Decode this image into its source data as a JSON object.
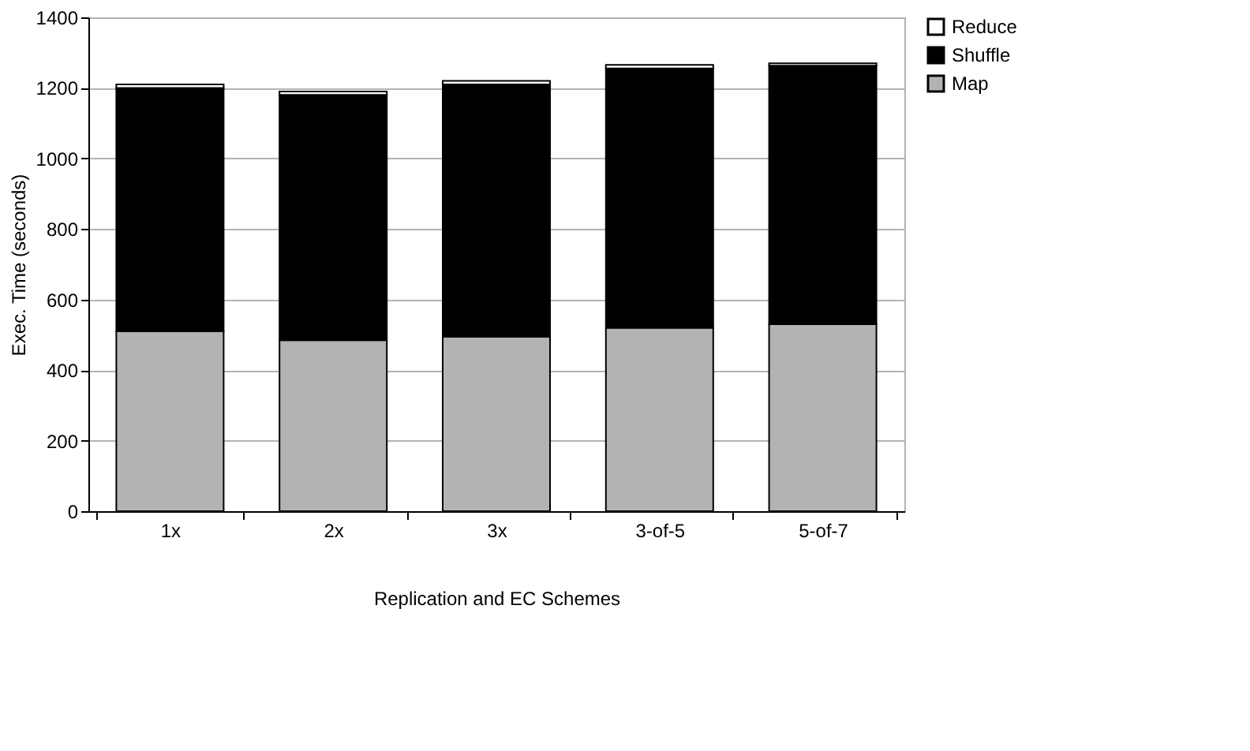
{
  "chart_data": {
    "type": "bar",
    "stacked": true,
    "xlabel": "Replication and EC Schemes",
    "ylabel": "Exec. Time (seconds)",
    "categories": [
      "1x",
      "2x",
      "3x",
      "3-of-5",
      "5-of-7"
    ],
    "series": [
      {
        "name": "Map",
        "color": "#b3b3b3",
        "values": [
          510,
          485,
          495,
          520,
          530
        ]
      },
      {
        "name": "Shuffle",
        "color": "#000000",
        "values": [
          690,
          695,
          715,
          735,
          733
        ]
      },
      {
        "name": "Reduce",
        "color": "#ffffff",
        "values": [
          10,
          10,
          10,
          10,
          7
        ]
      }
    ],
    "ylim": [
      0,
      1400
    ],
    "yticks": [
      0,
      200,
      400,
      600,
      800,
      1000,
      1200,
      1400
    ],
    "grid": "y",
    "legend": "right"
  }
}
